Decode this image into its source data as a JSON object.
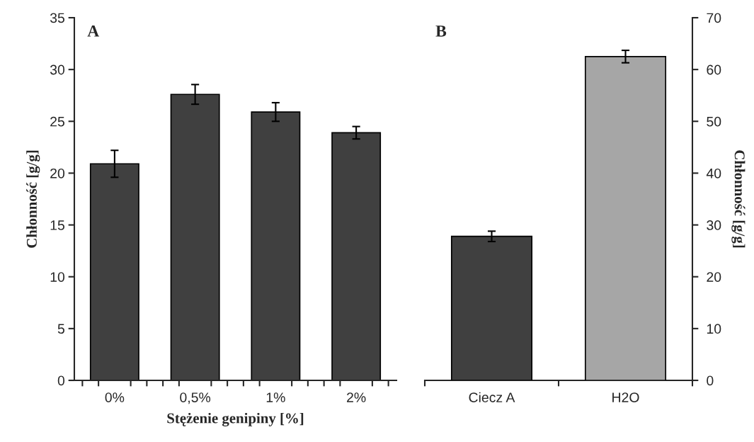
{
  "chart_data": [
    {
      "type": "bar",
      "title": "A",
      "xlabel": "Stężenie genipiny [%]",
      "ylabel": "Chłonność [g/g]",
      "categories": [
        "0%",
        "0,5%",
        "1%",
        "2%"
      ],
      "series": [
        {
          "color": "#404040",
          "values": [
            20.9,
            27.6,
            25.9,
            23.9
          ],
          "errors": [
            1.3,
            0.95,
            0.9,
            0.6
          ]
        }
      ],
      "ylim": [
        0,
        35
      ],
      "yticks": [
        0,
        5,
        10,
        15,
        20,
        25,
        30,
        35
      ],
      "grid": false,
      "legend": false
    },
    {
      "type": "bar",
      "title": "B",
      "y2label": "Chłonność [g/g]",
      "categories": [
        "Ciecz A",
        "H2O"
      ],
      "series": [
        {
          "axis": "y2",
          "colors": [
            "#404040",
            "#a6a6a6"
          ],
          "values": [
            27.8,
            62.5
          ],
          "errors": [
            1.0,
            1.2
          ]
        }
      ],
      "y2lim": [
        0,
        70
      ],
      "y2ticks": [
        0,
        10,
        20,
        30,
        40,
        50,
        60,
        70
      ],
      "grid": false,
      "legend": false
    }
  ]
}
